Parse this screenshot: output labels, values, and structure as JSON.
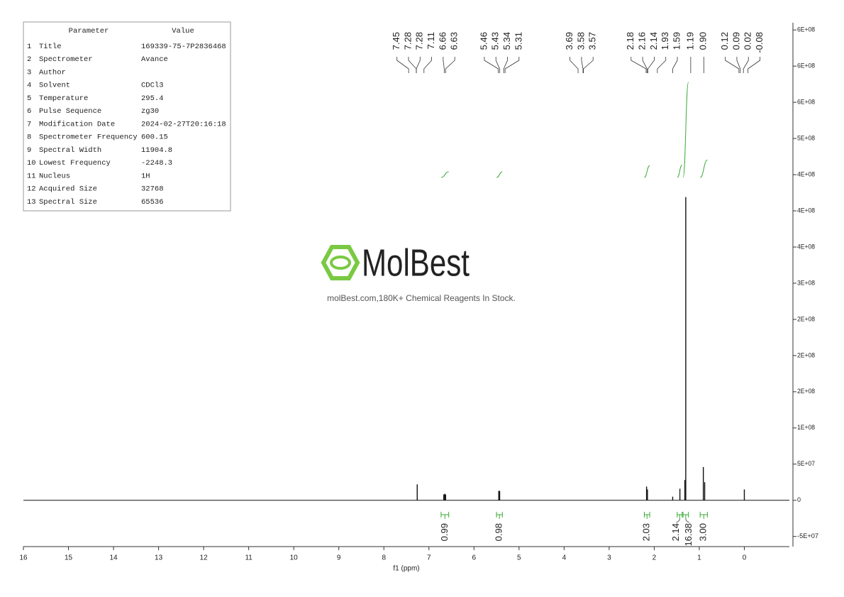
{
  "chart_data": {
    "type": "nmr",
    "x_label": "f1 (ppm)",
    "xlim": [
      16,
      -1
    ],
    "xticks": [
      16,
      15,
      14,
      13,
      12,
      11,
      10,
      9,
      8,
      7,
      6,
      5,
      4,
      3,
      2,
      1,
      0
    ],
    "ylim": [
      -64000000,
      660000000
    ],
    "yticks": [
      {
        "value": -50000000,
        "label": "-5E+07"
      },
      0,
      {
        "value": 50000000,
        "label": "5E+07"
      },
      {
        "value": 100000000,
        "label": "1E+08"
      },
      {
        "value": 150000000,
        "label": "2E+08"
      },
      {
        "value": 200000000,
        "label": "2E+08"
      },
      {
        "value": 250000000,
        "label": "2E+08"
      },
      {
        "value": 300000000,
        "label": "3E+08"
      },
      {
        "value": 350000000,
        "label": "4E+08"
      },
      {
        "value": 400000000,
        "label": "4E+08"
      },
      {
        "value": 450000000,
        "label": "4E+08"
      },
      {
        "value": 500000000,
        "label": "5E+08"
      },
      {
        "value": 550000000,
        "label": "6E+08"
      },
      {
        "value": 600000000,
        "label": "6E+08"
      },
      {
        "value": 650000000,
        "label": "6E+08"
      }
    ],
    "color": "#111111",
    "integral_color": "#3aa935",
    "peaks": {
      "x": [
        7.26,
        6.67,
        6.65,
        6.63,
        5.45,
        5.43,
        2.17,
        2.15,
        1.59,
        1.43,
        1.32,
        1.3,
        0.91,
        0.88,
        0.0
      ],
      "values": [
        22000000,
        8000000,
        9000000,
        8000000,
        13000000,
        13000000,
        19000000,
        15000000,
        5000000,
        16000000,
        28000000,
        419000000,
        46000000,
        25000000,
        15000000
      ]
    },
    "peak_labels": [
      {
        "value": 7.45,
        "label": "7.45"
      },
      {
        "value": 7.28,
        "label": "7.28"
      },
      {
        "value": 7.28,
        "label": "7.28"
      },
      {
        "value": 7.11,
        "label": "7.11"
      },
      {
        "value": 6.66,
        "label": "6.66"
      },
      {
        "value": 6.63,
        "label": "6.63"
      },
      {
        "value": 5.46,
        "label": "5.46"
      },
      {
        "value": 5.43,
        "label": "5.43"
      },
      {
        "value": 5.34,
        "label": "5.34"
      },
      {
        "value": 5.31,
        "label": "5.31"
      },
      {
        "value": 3.69,
        "label": "3.69"
      },
      {
        "value": 3.58,
        "label": "3.58"
      },
      {
        "value": 3.57,
        "label": "3.57"
      },
      {
        "value": 2.18,
        "label": "2.18"
      },
      {
        "value": 2.16,
        "label": "2.16"
      },
      {
        "value": 2.14,
        "label": "2.14"
      },
      {
        "value": 1.93,
        "label": "1.93"
      },
      {
        "value": 1.59,
        "label": "1.59"
      },
      {
        "value": 1.19,
        "label": "1.19"
      },
      {
        "value": 0.9,
        "label": "0.90"
      },
      {
        "value": 0.12,
        "label": "0.12"
      },
      {
        "value": 0.09,
        "label": "0.09"
      },
      {
        "value": 0.02,
        "label": "0.02"
      },
      {
        "value": -0.08,
        "label": "-0.08"
      }
    ],
    "integrals": [
      {
        "from": 6.73,
        "to": 6.56,
        "value": 0.99,
        "label": "0.99"
      },
      {
        "from": 5.5,
        "to": 5.37,
        "value": 0.98,
        "label": "0.98"
      },
      {
        "from": 2.22,
        "to": 2.1,
        "value": 2.03,
        "label": "2.03"
      },
      {
        "from": 1.49,
        "to": 1.38,
        "value": 2.14
      },
      {
        "from": 1.36,
        "to": 1.24,
        "value": 16.38
      },
      {
        "from": 0.98,
        "to": 0.82,
        "value": 3.0,
        "label": "3.00"
      }
    ]
  },
  "parameter_table": {
    "header": [
      "Parameter",
      "Value"
    ],
    "rows": [
      [
        "1",
        "Title",
        "169339-75-7P2836468"
      ],
      [
        "2",
        "Spectrometer",
        "Avance"
      ],
      [
        "3",
        "Author",
        ""
      ],
      [
        "4",
        "Solvent",
        "CDCl3"
      ],
      [
        "5",
        "Temperature",
        "295.4"
      ],
      [
        "6",
        "Pulse Sequence",
        "zg30"
      ],
      [
        "7",
        "Modification Date",
        "2024-02-27T20:16:18"
      ],
      [
        "8",
        "Spectrometer Frequency",
        "600.15"
      ],
      [
        "9",
        "Spectral Width",
        "11904.8"
      ],
      [
        "10",
        "Lowest Frequency",
        "-2248.3"
      ],
      [
        "11",
        "Nucleus",
        "1H"
      ],
      [
        "12",
        "Acquired Size",
        "32768"
      ],
      [
        "13",
        "Spectral Size",
        "65536"
      ]
    ]
  },
  "watermark": {
    "brand": "MolBest",
    "tagline": "molBest.com,180K+ Chemical Reagents In Stock."
  }
}
